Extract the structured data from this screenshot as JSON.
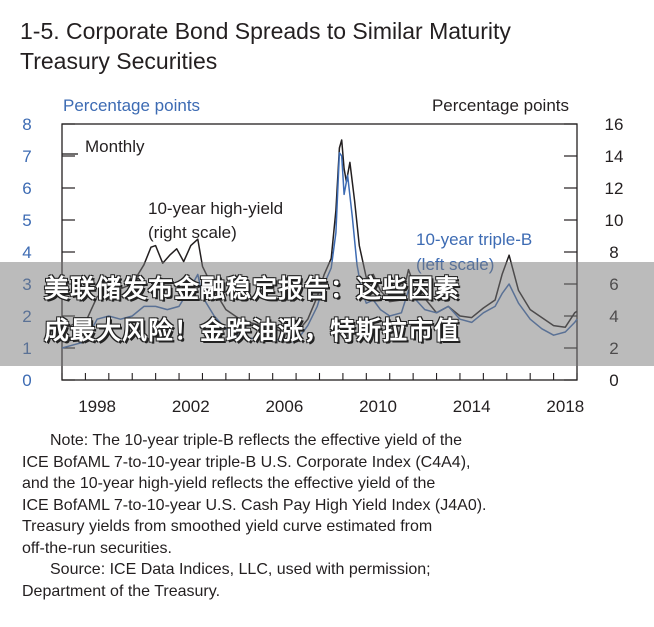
{
  "figure": {
    "title_line1": "1-5. Corporate Bond Spreads to Similar Maturity",
    "title_line2": "Treasury Securities"
  },
  "chart_data": {
    "type": "line",
    "frequency_label": "Monthly",
    "left_axis_label": "Percentage points",
    "right_axis_label": "Percentage points",
    "left_ylim": [
      0,
      8
    ],
    "right_ylim": [
      0,
      16
    ],
    "left_ticks": [
      "0",
      "1",
      "2",
      "3",
      "4",
      "5",
      "6",
      "7",
      "8"
    ],
    "right_ticks": [
      "0",
      "2",
      "4",
      "6",
      "8",
      "10",
      "12",
      "14",
      "16"
    ],
    "x_ticks": [
      "1998",
      "2002",
      "2006",
      "2010",
      "2014",
      "2018"
    ],
    "xlim": [
      1997,
      2019
    ],
    "series": [
      {
        "name": "10-year high-yield",
        "label_line1": "10-year high-yield",
        "label_line2": "(right scale)",
        "axis": "right",
        "color": "#231f20",
        "x": [
          1997.0,
          1997.5,
          1998.0,
          1998.5,
          1999.0,
          1999.5,
          2000.0,
          2000.5,
          2000.8,
          2001.0,
          2001.3,
          2001.6,
          2001.9,
          2002.2,
          2002.5,
          2002.8,
          2003.0,
          2003.5,
          2004.0,
          2004.5,
          2005.0,
          2005.5,
          2006.0,
          2006.5,
          2007.0,
          2007.5,
          2007.9,
          2008.2,
          2008.5,
          2008.7,
          2008.85,
          2008.95,
          2009.05,
          2009.15,
          2009.3,
          2009.5,
          2009.7,
          2010.0,
          2010.3,
          2010.6,
          2011.0,
          2011.5,
          2011.8,
          2012.0,
          2012.5,
          2013.0,
          2013.5,
          2014.0,
          2014.5,
          2015.0,
          2015.5,
          2015.8,
          2016.1,
          2016.5,
          2017.0,
          2017.5,
          2018.0,
          2018.5,
          2018.9,
          2019.0
        ],
        "y": [
          3.1,
          3.5,
          3.6,
          5.2,
          5.6,
          5.7,
          6.0,
          7.2,
          8.3,
          8.4,
          7.3,
          7.8,
          8.2,
          7.4,
          8.4,
          8.8,
          7.1,
          5.6,
          4.4,
          3.9,
          3.6,
          3.4,
          3.2,
          3.0,
          2.9,
          3.8,
          5.2,
          6.6,
          7.6,
          10.6,
          14.5,
          15.0,
          13.2,
          12.4,
          13.6,
          11.2,
          8.4,
          6.4,
          6.6,
          5.6,
          4.9,
          5.0,
          6.9,
          6.1,
          5.1,
          4.2,
          4.6,
          4.0,
          3.9,
          4.5,
          5.0,
          6.6,
          7.8,
          5.6,
          4.4,
          3.9,
          3.4,
          3.3,
          4.2,
          4.3
        ]
      },
      {
        "name": "10-year triple-B",
        "label_line1": "10-year triple-B",
        "label_line2": "(left scale)",
        "axis": "left",
        "color": "#3d6bb3",
        "x": [
          1997.0,
          1997.5,
          1998.0,
          1998.5,
          1999.0,
          1999.5,
          2000.0,
          2000.5,
          2001.0,
          2001.5,
          2002.0,
          2002.5,
          2002.8,
          2003.0,
          2003.5,
          2004.0,
          2004.5,
          2005.0,
          2005.5,
          2006.0,
          2006.5,
          2007.0,
          2007.5,
          2007.9,
          2008.2,
          2008.5,
          2008.7,
          2008.85,
          2008.95,
          2009.05,
          2009.2,
          2009.4,
          2009.6,
          2009.8,
          2010.0,
          2010.3,
          2010.6,
          2011.0,
          2011.5,
          2011.8,
          2012.0,
          2012.5,
          2013.0,
          2013.5,
          2014.0,
          2014.5,
          2015.0,
          2015.5,
          2015.8,
          2016.1,
          2016.5,
          2017.0,
          2017.5,
          2018.0,
          2018.5,
          2018.9,
          2019.0
        ],
        "y": [
          1.0,
          1.1,
          1.2,
          1.9,
          2.0,
          1.9,
          2.0,
          2.3,
          2.3,
          2.2,
          2.3,
          2.9,
          3.3,
          2.6,
          2.0,
          1.6,
          1.4,
          1.3,
          1.3,
          1.3,
          1.2,
          1.2,
          1.7,
          2.3,
          3.0,
          3.5,
          4.6,
          7.1,
          7.0,
          5.8,
          6.4,
          5.1,
          3.6,
          2.8,
          2.4,
          2.5,
          2.2,
          2.0,
          2.1,
          2.8,
          2.6,
          2.2,
          2.1,
          2.3,
          1.9,
          1.8,
          2.1,
          2.3,
          2.7,
          3.0,
          2.4,
          1.9,
          1.6,
          1.4,
          1.5,
          1.8,
          1.9
        ]
      }
    ]
  },
  "notes": {
    "note_line1": "Note: The 10-year triple-B reflects the effective yield of the",
    "note_line2": "ICE BofAML 7-to-10-year triple-B U.S. Corporate Index (C4A4),",
    "note_line3": "and the 10-year high-yield reflects the effective yield of the",
    "note_line4": "ICE BofAML 7-to-10-year U.S. Cash Pay High Yield Index (J4A0).",
    "note_line5": "Treasury yields from smoothed yield curve estimated from",
    "note_line6": "off-the-run securities.",
    "source_line1": "Source: ICE Data Indices, LLC, used with permission;",
    "source_line2": "Department of the Treasury."
  },
  "overlay": {
    "line1": "美联储发布金融稳定报告：这些因素",
    "line2": "成最大风险！金跌油涨，特斯拉市值"
  }
}
